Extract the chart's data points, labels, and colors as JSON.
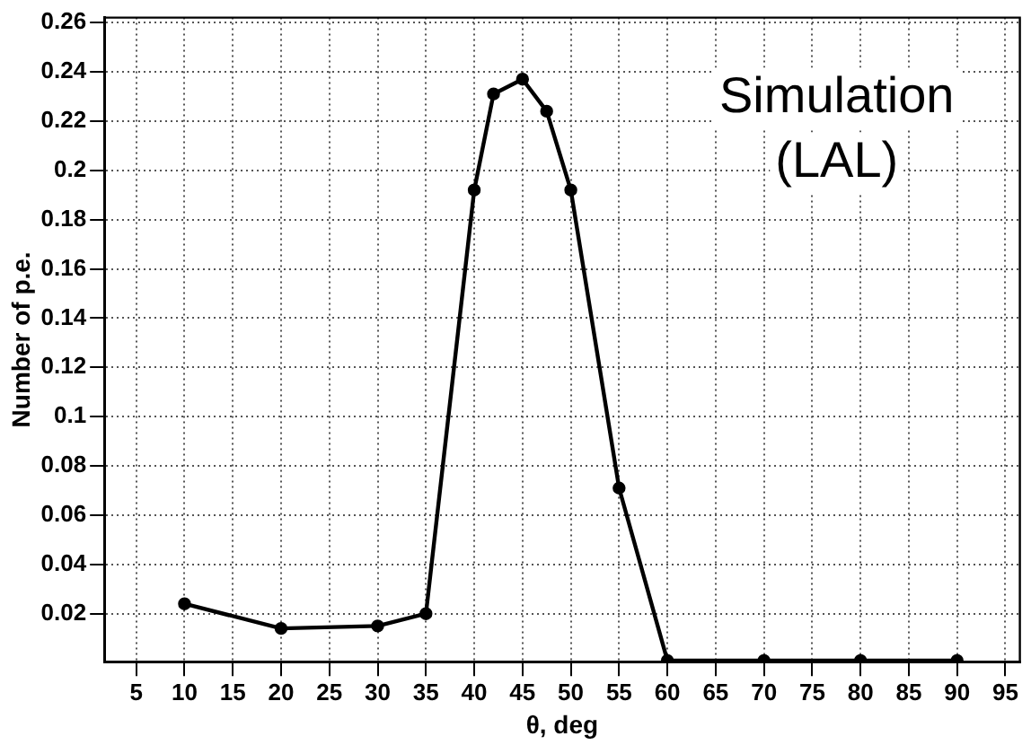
{
  "chart_data": {
    "type": "line",
    "xlabel": "θ, deg",
    "ylabel": "Number of p.e.",
    "annotations": [
      "Simulation\n(LAL)"
    ],
    "x": [
      10,
      20,
      30,
      35,
      40,
      42,
      45,
      47.5,
      50,
      55,
      60,
      70,
      80,
      90
    ],
    "series": [
      {
        "color": "#000000",
        "values": [
          0.024,
          0.014,
          0.015,
          0.02,
          0.192,
          0.231,
          0.237,
          0.224,
          0.192,
          0.071,
          0.001,
          0.001,
          0.001,
          0.001
        ]
      }
    ],
    "xlim": [
      1.7,
      96.5
    ],
    "xticks": [
      5,
      10,
      15,
      20,
      25,
      30,
      35,
      40,
      45,
      50,
      55,
      60,
      65,
      70,
      75,
      80,
      85,
      90,
      95
    ],
    "ylim": [
      0.0005,
      0.262
    ],
    "yticks": [
      0.02,
      0.04,
      0.06,
      0.08,
      0.1,
      0.12,
      0.14,
      0.16,
      0.18,
      0.2,
      0.22,
      0.24,
      0.26
    ],
    "grid": true,
    "legend": false,
    "marker": "circle",
    "line_style": "solid"
  }
}
